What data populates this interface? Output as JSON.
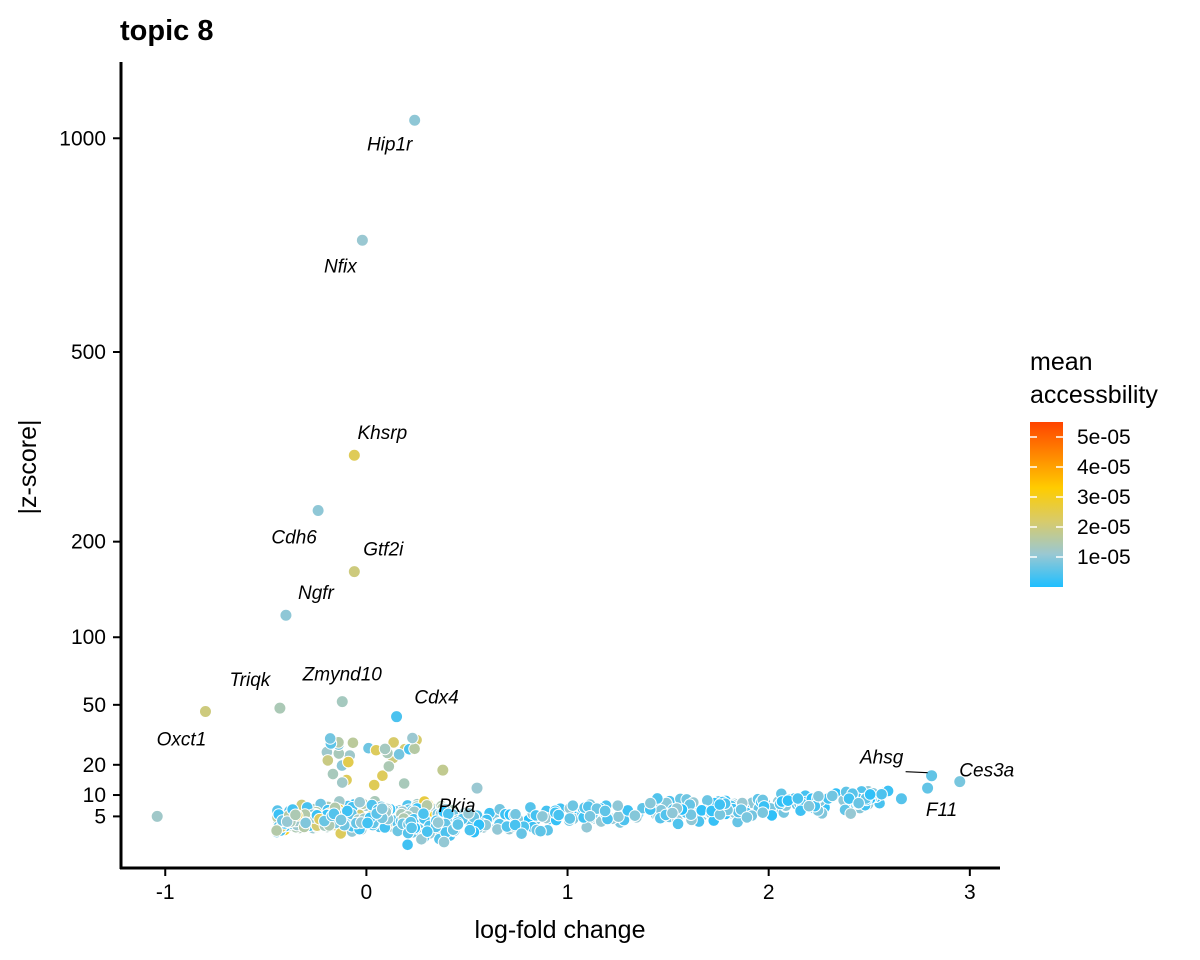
{
  "chart_data": {
    "type": "scatter",
    "title": "topic 8",
    "xlabel": "log-fold change",
    "ylabel": "|z-score|",
    "x_ticks": [
      -1,
      0,
      1,
      2,
      3
    ],
    "x_tick_labels": [
      "-1",
      "0",
      "1",
      "2",
      "3"
    ],
    "xlim": [
      -1.22,
      3.15
    ],
    "y_ticks": [
      5,
      10,
      20,
      50,
      100,
      200,
      500,
      1000
    ],
    "y_tick_labels": [
      "5",
      "10",
      "20",
      "50",
      "100",
      "200",
      "500",
      "1000"
    ],
    "y_scale": "sqrt",
    "ylim": [
      0,
      1220
    ],
    "grid": false,
    "legend": {
      "title_lines": [
        "mean",
        "accessbility"
      ],
      "position": "right",
      "type": "gradient",
      "range": [
        0,
        5.5e-05
      ],
      "ticks": [
        1e-05,
        2e-05,
        3e-05,
        4e-05,
        5e-05
      ],
      "tick_labels": [
        "1e-05",
        "2e-05",
        "3e-05",
        "4e-05",
        "5e-05"
      ],
      "colors": [
        "#1EBFFF",
        "#9AC8D2",
        "#D8CB6A",
        "#FFCC00",
        "#FF8800",
        "#FF4400"
      ]
    },
    "points": [
      {
        "x": 0.24,
        "y": 1050,
        "c": 1e-05
      },
      {
        "x": -0.02,
        "y": 740,
        "c": 1.1e-05
      },
      {
        "x": -0.06,
        "y": 320,
        "c": 2.4e-05
      },
      {
        "x": -0.24,
        "y": 240,
        "c": 1e-05
      },
      {
        "x": -0.06,
        "y": 165,
        "c": 2e-05
      },
      {
        "x": -0.4,
        "y": 120,
        "c": 1e-05
      },
      {
        "x": -0.43,
        "y": 48,
        "c": 1.4e-05
      },
      {
        "x": -0.12,
        "y": 52,
        "c": 1.3e-05
      },
      {
        "x": 0.15,
        "y": 43,
        "c": 4e-06
      },
      {
        "x": -0.8,
        "y": 46,
        "c": 2e-05
      },
      {
        "x": -1.04,
        "y": 5,
        "c": 1.2e-05
      },
      {
        "x": 0.55,
        "y": 12,
        "c": 1.1e-05
      },
      {
        "x": 0.38,
        "y": 18,
        "c": 1.8e-05
      },
      {
        "x": 2.95,
        "y": 14,
        "c": 8e-06
      },
      {
        "x": 2.81,
        "y": 16,
        "c": 6e-06
      },
      {
        "x": 2.79,
        "y": 12,
        "c": 6e-06
      },
      {
        "x": 2.66,
        "y": 9,
        "c": 5e-06
      }
    ],
    "annotations": [
      {
        "text": "Hip1r",
        "x": 0.24,
        "y": 1050
      },
      {
        "text": "Nfix",
        "x": -0.02,
        "y": 740
      },
      {
        "text": "Khsrp",
        "x": -0.06,
        "y": 320
      },
      {
        "text": "Cdh6",
        "x": -0.24,
        "y": 240
      },
      {
        "text": "Gtf2i",
        "x": -0.06,
        "y": 165
      },
      {
        "text": "Ngfr",
        "x": -0.4,
        "y": 120
      },
      {
        "text": "Triqk",
        "x": -0.43,
        "y": 48
      },
      {
        "text": "Zmynd10",
        "x": -0.12,
        "y": 52
      },
      {
        "text": "Cdx4",
        "x": 0.15,
        "y": 43
      },
      {
        "text": "Oxct1",
        "x": -0.8,
        "y": 46
      },
      {
        "text": "Pkia",
        "x": 0.55,
        "y": 12
      },
      {
        "text": "Ahsg",
        "x": 2.81,
        "y": 16
      },
      {
        "text": "Ces3a",
        "x": 2.95,
        "y": 14
      },
      {
        "text": "F11",
        "x": 2.79,
        "y": 12
      }
    ]
  }
}
